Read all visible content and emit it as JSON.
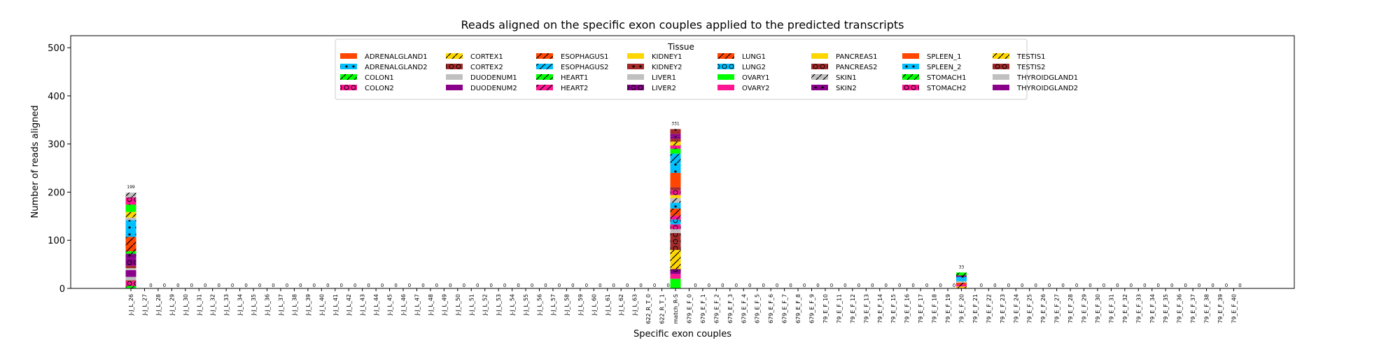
{
  "chart_data": {
    "type": "bar",
    "title": "Reads aligned on the specific exon couples applied to the predicted transcripts",
    "xlabel": "Specific exon couples",
    "ylabel": "Number of reads aligned",
    "ylim": [
      0,
      525
    ],
    "yticks": [
      0,
      100,
      200,
      300,
      400,
      500
    ],
    "grid": false,
    "legend_title": "Tissue",
    "legend_position": "top-center",
    "categories": [
      "J-J_L_26",
      "J-J_L_27",
      "J-J_L_28",
      "J-J_L_29",
      "J-J_L_30",
      "J-J_L_31",
      "J-J_L_32",
      "J-J_L_33",
      "J-J_L_34",
      "J-J_L_35",
      "J-J_L_36",
      "J-J_L_37",
      "J-J_L_38",
      "J-J_L_39",
      "J-J_L_40",
      "J-J_L_41",
      "J-J_L_42",
      "J-J_L_43",
      "J-J_L_44",
      "J-J_L_45",
      "J-J_L_46",
      "J-J_L_47",
      "J-J_L_48",
      "J-J_L_49",
      "J-J_L_50",
      "J-J_L_51",
      "J-J_L_52",
      "J-J_L_53",
      "J-J_L_54",
      "J-J_L_55",
      "J-J_L_56",
      "J-J_L_57",
      "J-J_L_58",
      "J-J_L_59",
      "J-J_L_60",
      "J-J_L_61",
      "J-J_L_62",
      "J-J_L_63",
      "622_R_T_0",
      "622_R_T_1",
      "match_R-S",
      "679_E_F_0",
      "679_E_F_1",
      "679_E_F_2",
      "679_E_F_3",
      "679_E_F_4",
      "679_E_F_5",
      "679_E_F_6",
      "679_E_F_7",
      "679_E_F_8",
      "679_E_F_9",
      "79_E_F_10",
      "79_E_F_11",
      "79_E_F_12",
      "79_E_F_13",
      "79_E_F_14",
      "79_E_F_15",
      "79_E_F_16",
      "79_E_F_17",
      "79_E_F_18",
      "79_E_F_19",
      "79_E_F_20",
      "79_E_F_21",
      "79_E_F_22",
      "79_E_F_23",
      "79_E_F_24",
      "79_E_F_25",
      "79_E_F_26",
      "79_E_F_27",
      "79_E_F_28",
      "79_E_F_29",
      "79_E_F_30",
      "79_E_F_31",
      "79_E_F_32",
      "79_E_F_33",
      "79_E_F_34",
      "79_E_F_35",
      "79_E_F_36",
      "79_E_F_37",
      "79_E_F_38",
      "79_E_F_39",
      "79_E_F_40"
    ],
    "totals": [
      199,
      0,
      0,
      0,
      0,
      0,
      0,
      0,
      0,
      0,
      0,
      0,
      0,
      0,
      0,
      0,
      0,
      0,
      0,
      0,
      0,
      0,
      0,
      0,
      0,
      0,
      0,
      0,
      0,
      0,
      0,
      0,
      0,
      0,
      0,
      0,
      0,
      0,
      0,
      0,
      331,
      0,
      0,
      0,
      0,
      0,
      0,
      0,
      0,
      0,
      0,
      0,
      0,
      0,
      0,
      0,
      0,
      0,
      0,
      0,
      0,
      33,
      0,
      0,
      0,
      0,
      0,
      0,
      0,
      0,
      0,
      0,
      0,
      0,
      0,
      0,
      0,
      0,
      0,
      0,
      0,
      0
    ],
    "total_labels": [
      "199",
      "0",
      "0",
      "0",
      "0",
      "0",
      "0",
      "0",
      "0",
      "0",
      "0",
      "0",
      "0",
      "0",
      "0",
      "0",
      "0",
      "0",
      "0",
      "0",
      "0",
      "0",
      "0",
      "0",
      "0",
      "0",
      "0",
      "0",
      "0",
      "0",
      "0",
      "0",
      "0",
      "0",
      "0",
      "0",
      "0",
      "0",
      "0",
      "0",
      "331",
      "0",
      "0",
      "0",
      "0",
      "0",
      "0",
      "0",
      "0",
      "0",
      "0",
      "0",
      "0",
      "0",
      "0",
      "0",
      "0",
      "0",
      "0",
      "0",
      "0",
      "33",
      "0",
      "0",
      "0",
      "0",
      "0",
      "0",
      "0",
      "0",
      "0",
      "0",
      "0",
      "0",
      "0",
      "0",
      "0",
      "0",
      "0",
      "0",
      "0",
      "0"
    ],
    "series": [
      {
        "name": "ADRENALGLAND1",
        "color": "#ff4500",
        "pattern": "none"
      },
      {
        "name": "ADRENALGLAND2",
        "color": "#00bfff",
        "pattern": "dots"
      },
      {
        "name": "COLON1",
        "color": "#00ff00",
        "pattern": "slash"
      },
      {
        "name": "COLON2",
        "color": "#ff1493",
        "pattern": "circles"
      },
      {
        "name": "CORTEX1",
        "color": "#ffd700",
        "pattern": "slash"
      },
      {
        "name": "CORTEX2",
        "color": "#a52a2a",
        "pattern": "circles"
      },
      {
        "name": "DUODENUM1",
        "color": "#c0c0c0",
        "pattern": "none"
      },
      {
        "name": "DUODENUM2",
        "color": "#8b008b",
        "pattern": "none"
      },
      {
        "name": "ESOPHAGUS1",
        "color": "#ff4500",
        "pattern": "slash"
      },
      {
        "name": "ESOPHAGUS2",
        "color": "#00bfff",
        "pattern": "slash"
      },
      {
        "name": "HEART1",
        "color": "#00ff00",
        "pattern": "slash"
      },
      {
        "name": "HEART2",
        "color": "#ff1493",
        "pattern": "slash"
      },
      {
        "name": "KIDNEY1",
        "color": "#ffd700",
        "pattern": "none"
      },
      {
        "name": "KIDNEY2",
        "color": "#a52a2a",
        "pattern": "dots"
      },
      {
        "name": "LIVER1",
        "color": "#c0c0c0",
        "pattern": "none"
      },
      {
        "name": "LIVER2",
        "color": "#8b008b",
        "pattern": "circles"
      },
      {
        "name": "LUNG1",
        "color": "#ff4500",
        "pattern": "slash"
      },
      {
        "name": "LUNG2",
        "color": "#00bfff",
        "pattern": "circles"
      },
      {
        "name": "OVARY1",
        "color": "#00ff00",
        "pattern": "none"
      },
      {
        "name": "OVARY2",
        "color": "#ff1493",
        "pattern": "none"
      },
      {
        "name": "PANCREAS1",
        "color": "#ffd700",
        "pattern": "none"
      },
      {
        "name": "PANCREAS2",
        "color": "#a52a2a",
        "pattern": "circles"
      },
      {
        "name": "SKIN1",
        "color": "#c0c0c0",
        "pattern": "slash"
      },
      {
        "name": "SKIN2",
        "color": "#8b008b",
        "pattern": "dots"
      },
      {
        "name": "SPLEEN_1",
        "color": "#ff4500",
        "pattern": "none"
      },
      {
        "name": "SPLEEN_2",
        "color": "#00bfff",
        "pattern": "dots"
      },
      {
        "name": "STOMACH1",
        "color": "#00ff00",
        "pattern": "slash"
      },
      {
        "name": "STOMACH2",
        "color": "#ff1493",
        "pattern": "circles"
      },
      {
        "name": "TESTIS1",
        "color": "#ffd700",
        "pattern": "slash"
      },
      {
        "name": "TESTIS2",
        "color": "#a52a2a",
        "pattern": "circles"
      },
      {
        "name": "THYROIDGLAND1",
        "color": "#c0c0c0",
        "pattern": "none"
      },
      {
        "name": "THYROIDGLAND2",
        "color": "#8b008b",
        "pattern": "none"
      }
    ],
    "stacks": [
      {
        "category": "J-J_L_26",
        "segments": [
          {
            "series": "COLON1",
            "value": 5
          },
          {
            "series": "COLON2",
            "value": 10
          },
          {
            "series": "CORTEX2",
            "value": 2
          },
          {
            "series": "DUODENUM1",
            "value": 7
          },
          {
            "series": "DUODENUM2",
            "value": 14
          },
          {
            "series": "LIVER1",
            "value": 4
          },
          {
            "series": "KIDNEY2",
            "value": 5
          },
          {
            "series": "LIVER2",
            "value": 15
          },
          {
            "series": "SKIN2",
            "value": 10
          },
          {
            "series": "HEART1",
            "value": 5
          },
          {
            "series": "ESOPHAGUS1",
            "value": 30
          },
          {
            "series": "ADRENALGLAND2",
            "value": 35
          },
          {
            "series": "DUODENUM1",
            "value": 5
          },
          {
            "series": "TESTIS1",
            "value": 12
          },
          {
            "series": "OVARY1",
            "value": 15
          },
          {
            "series": "COLON2",
            "value": 15
          },
          {
            "series": "SKIN1",
            "value": 10
          }
        ]
      },
      {
        "category": "match_R-S",
        "segments": [
          {
            "series": "OVARY1",
            "value": 20
          },
          {
            "series": "OVARY2",
            "value": 10
          },
          {
            "series": "LIVER2",
            "value": 10
          },
          {
            "series": "CORTEX1",
            "value": 40
          },
          {
            "series": "PANCREAS2",
            "value": 15
          },
          {
            "series": "CORTEX2",
            "value": 20
          },
          {
            "series": "LIVER1",
            "value": 8
          },
          {
            "series": "COLON2",
            "value": 10
          },
          {
            "series": "LUNG2",
            "value": 10
          },
          {
            "series": "HEART2",
            "value": 8
          },
          {
            "series": "ESOPHAGUS1",
            "value": 15
          },
          {
            "series": "ADRENALGLAND2",
            "value": 12
          },
          {
            "series": "SKIN1",
            "value": 10
          },
          {
            "series": "PANCREAS1",
            "value": 6
          },
          {
            "series": "STOMACH2",
            "value": 10
          },
          {
            "series": "KIDNEY2",
            "value": 6
          },
          {
            "series": "ADRENALGLAND1",
            "value": 30
          },
          {
            "series": "SPLEEN_2",
            "value": 20
          },
          {
            "series": "ESOPHAGUS2",
            "value": 20
          },
          {
            "series": "OVARY1",
            "value": 10
          },
          {
            "series": "COLON2",
            "value": 7
          },
          {
            "series": "TESTIS1",
            "value": 8
          },
          {
            "series": "PANCREAS2",
            "value": 6
          },
          {
            "series": "SKIN2",
            "value": 5
          },
          {
            "series": "DUODENUM2",
            "value": 5
          },
          {
            "series": "KIDNEY2",
            "value": 10
          }
        ]
      },
      {
        "category": "79_E_F_20",
        "segments": [
          {
            "series": "TESTIS1",
            "value": 4
          },
          {
            "series": "HEART2",
            "value": 4
          },
          {
            "series": "LUNG1",
            "value": 4
          },
          {
            "series": "DUODENUM1",
            "value": 3
          },
          {
            "series": "LUNG2",
            "value": 5
          },
          {
            "series": "SPLEEN_2",
            "value": 4
          },
          {
            "series": "SKIN2",
            "value": 3
          },
          {
            "series": "HEART1",
            "value": 6
          }
        ]
      }
    ]
  }
}
